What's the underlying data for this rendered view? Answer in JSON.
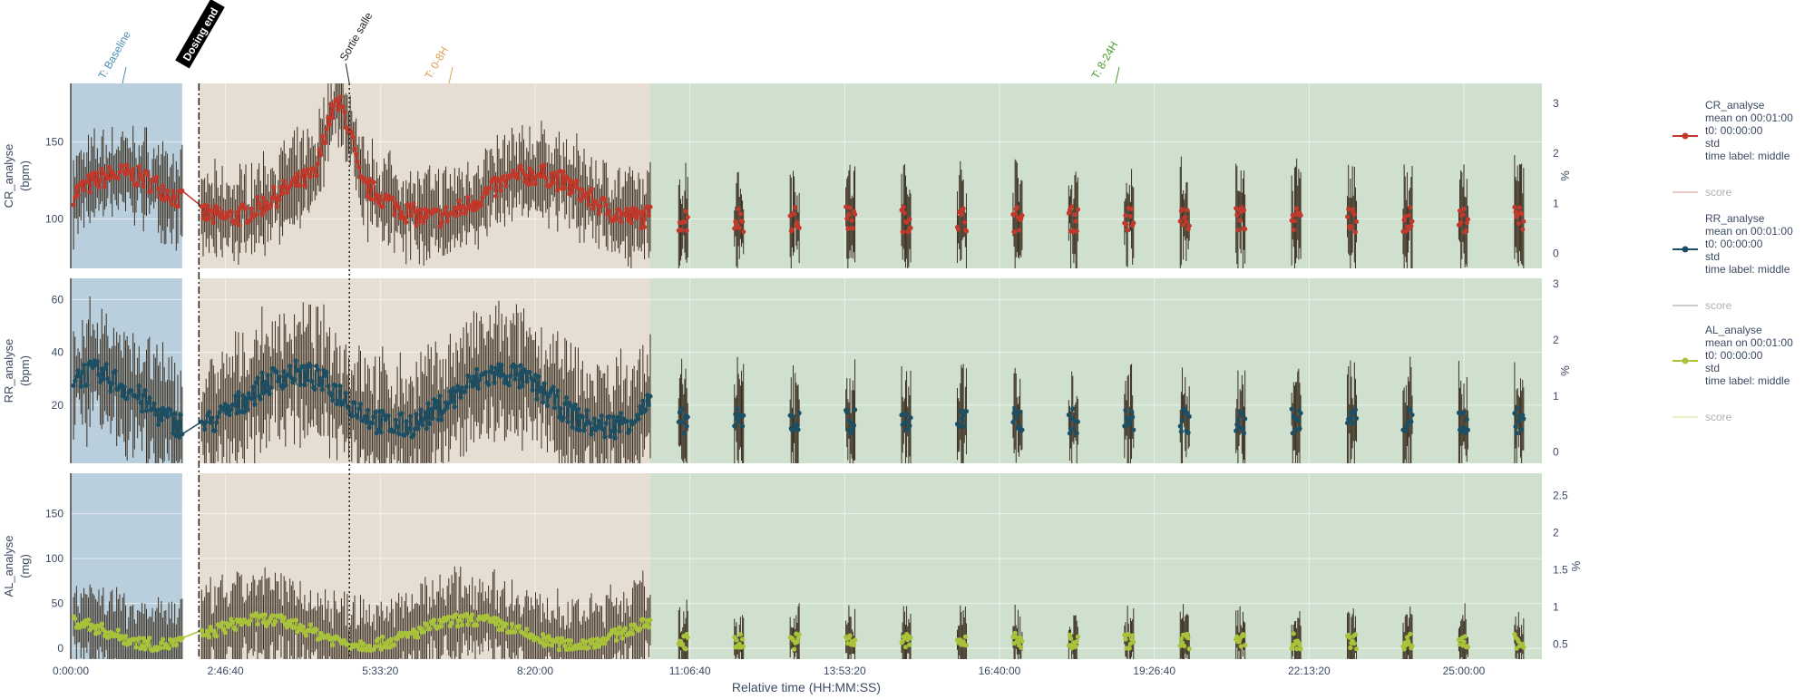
{
  "chart_data": {
    "type": "line",
    "xlabel": "Relative time (HH:MM:SS)",
    "x_unit_hours": true,
    "xlim": [
      0,
      26.4
    ],
    "x_ticks": [
      {
        "value": 0,
        "label": "0:00:00"
      },
      {
        "value": 2.7778,
        "label": "2:46:40"
      },
      {
        "value": 5.5556,
        "label": "5:33:20"
      },
      {
        "value": 8.3333,
        "label": "8:20:00"
      },
      {
        "value": 11.1111,
        "label": "11:06:40"
      },
      {
        "value": 13.8889,
        "label": "13:53:20"
      },
      {
        "value": 16.6667,
        "label": "16:40:00"
      },
      {
        "value": 19.4444,
        "label": "19:26:40"
      },
      {
        "value": 22.2222,
        "label": "22:13:20"
      },
      {
        "value": 25.0,
        "label": "25:00:00"
      }
    ],
    "periods": [
      {
        "label": "T: Baseline",
        "start": 0,
        "end": 2.0,
        "color": "#b9cfdd",
        "label_color": "#4a8db5"
      },
      {
        "label": "T: 0-8H",
        "start": 2.3,
        "end": 10.4,
        "color": "#e6ddd3",
        "label_color": "#d9a154"
      },
      {
        "label": "T: 8-24H",
        "start": 10.4,
        "end": 26.4,
        "color": "#cfe0cf",
        "label_color": "#4a9a2a"
      }
    ],
    "events": [
      {
        "label": "Dosing end",
        "x": 2.3,
        "style": "dashdot",
        "boxed": true
      },
      {
        "label": "Sortie salle",
        "x": 5.0,
        "style": "dotted",
        "boxed": false
      }
    ],
    "panels": [
      {
        "ylabel_line1": "CR_analyse",
        "ylabel_line2": "(bpm)",
        "color": "#c0392b",
        "ylim": [
          68,
          188
        ],
        "yticks": [
          100,
          150
        ],
        "y2lim": [
          -0.3,
          3.4
        ],
        "y2ticks": [
          0,
          1,
          2,
          3
        ],
        "y2label": "%",
        "dense_mean": 115,
        "dense_amp": 14,
        "dense_err": 22,
        "sparse_mean": 100,
        "sparse_err": 28
      },
      {
        "ylabel_line1": "RR_analyse",
        "ylabel_line2": "(bpm)",
        "color": "#1c4f64",
        "ylim": [
          -2,
          68
        ],
        "yticks": [
          20,
          40,
          60
        ],
        "y2lim": [
          -0.2,
          3.1
        ],
        "y2ticks": [
          0,
          1,
          2,
          3
        ],
        "y2label": "%",
        "dense_mean": 22,
        "dense_amp": 10,
        "dense_err": 18,
        "sparse_mean": 14,
        "sparse_err": 16
      },
      {
        "ylabel_line1": "AL_analyse",
        "ylabel_line2": "(mg)",
        "color": "#a8c23a",
        "ylim": [
          -12,
          195
        ],
        "yticks": [
          0,
          50,
          100,
          150
        ],
        "y2lim": [
          0.3,
          2.8
        ],
        "y2ticks": [
          0.5,
          1,
          1.5,
          2,
          2.5
        ],
        "y2label": "%",
        "dense_mean": 18,
        "dense_amp": 14,
        "dense_err": 40,
        "sparse_mean": 8,
        "sparse_err": 30
      }
    ],
    "sparse_x": [
      11.0,
      12.0,
      13.0,
      14.0,
      15.0,
      16.0,
      17.0,
      18.0,
      19.0,
      20.0,
      21.0,
      22.0,
      23.0,
      24.0,
      25.0,
      26.0
    ],
    "legend": [
      {
        "name": "CR_analyse",
        "lines": [
          "CR_analyse",
          "mean on 00:01:00",
          "t0: 00:00:00",
          "std",
          "time label: middle"
        ],
        "color": "#c0392b",
        "score_label": "score",
        "score_color": "#ecc8c8"
      },
      {
        "name": "RR_analyse",
        "lines": [
          "RR_analyse",
          "mean on 00:01:00",
          "t0: 00:00:00",
          "std",
          "time label: middle"
        ],
        "color": "#1c4f64",
        "score_label": "score",
        "score_color": "#c8cdd2"
      },
      {
        "name": "AL_analyse",
        "lines": [
          "AL_analyse",
          "mean on 00:01:00",
          "t0: 00:00:00",
          "std",
          "time label: middle"
        ],
        "color": "#a8c23a",
        "score_label": "score",
        "score_color": "#eef0c6"
      }
    ]
  }
}
